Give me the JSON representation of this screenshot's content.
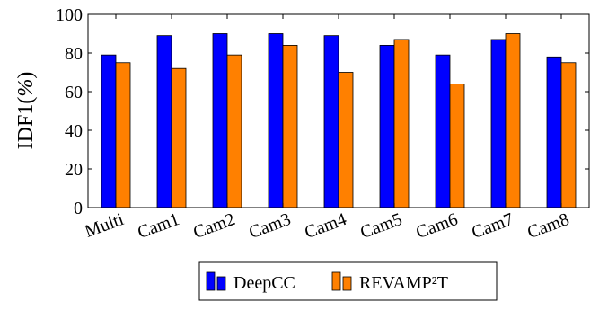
{
  "chart_data": {
    "type": "bar",
    "categories": [
      "Multi",
      "Cam1",
      "Cam2",
      "Cam3",
      "Cam4",
      "Cam5",
      "Cam6",
      "Cam7",
      "Cam8"
    ],
    "series": [
      {
        "name": "DeepCC",
        "color": "#0000ff",
        "values": [
          79,
          89,
          90,
          90,
          89,
          84,
          79,
          87,
          78
        ]
      },
      {
        "name": "REVAMP²T",
        "color": "#ff8000",
        "values": [
          75,
          72,
          79,
          84,
          70,
          87,
          64,
          90,
          75
        ]
      }
    ],
    "ylabel": "IDF1(%)",
    "ylabel_main": "IDF1(",
    "ylabel_unit": "%",
    "ylabel_close": ")",
    "xlabel": "",
    "title": "",
    "ylim": [
      0,
      100
    ],
    "yticks": [
      0,
      20,
      40,
      60,
      80,
      100
    ],
    "legend_position": "bottom-center",
    "grid": false
  }
}
